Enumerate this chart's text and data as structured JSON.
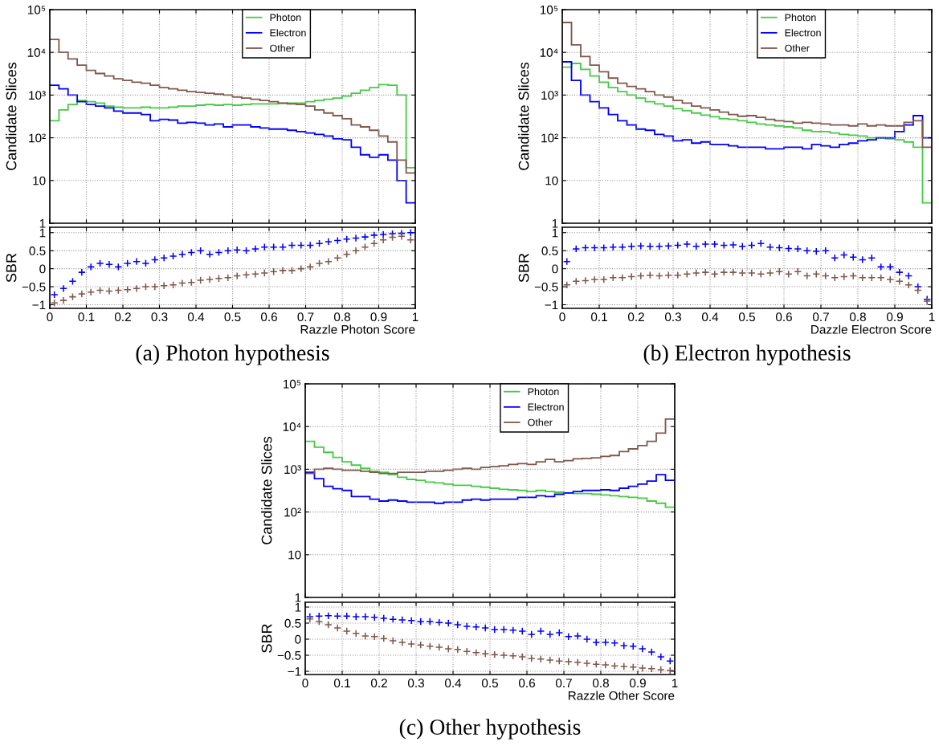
{
  "chart_data": [
    {
      "type": "histogram",
      "ylabel": "Candidate Slices",
      "log": "y",
      "grid": true,
      "legend": "top",
      "tick_labels": "y",
      "xlim": [
        0,
        1
      ],
      "ylim": [
        1,
        100000
      ],
      "yticks": [
        1,
        10,
        {
          "value": 100,
          "label": "10²"
        },
        {
          "value": 1000,
          "label": "10³"
        },
        {
          "value": 10000,
          "label": "10⁴"
        },
        {
          "value": 100000,
          "label": "10⁵"
        }
      ],
      "bins": [
        0,
        0.025,
        0.05,
        0.075,
        0.1,
        0.125,
        0.15,
        0.175,
        0.2,
        0.225,
        0.25,
        0.275,
        0.3,
        0.325,
        0.35,
        0.375,
        0.4,
        0.425,
        0.45,
        0.475,
        0.5,
        0.525,
        0.55,
        0.575,
        0.6,
        0.625,
        0.65,
        0.675,
        0.7,
        0.725,
        0.75,
        0.775,
        0.8,
        0.825,
        0.85,
        0.875,
        0.9,
        0.925,
        0.95,
        0.975,
        1
      ],
      "series": [
        {
          "name": "Photon",
          "color": "#44cc44",
          "values": [
            250,
            450,
            600,
            750,
            700,
            650,
            550,
            520,
            500,
            500,
            520,
            500,
            500,
            520,
            550,
            550,
            580,
            600,
            580,
            600,
            580,
            600,
            620,
            620,
            620,
            640,
            650,
            650,
            700,
            750,
            800,
            850,
            950,
            1100,
            1300,
            1500,
            1750,
            1700,
            1000,
            20
          ]
        },
        {
          "name": "Electron",
          "color": "#0000ff",
          "values": [
            1700,
            1400,
            1000,
            700,
            600,
            550,
            500,
            420,
            380,
            380,
            350,
            250,
            270,
            260,
            220,
            230,
            220,
            200,
            210,
            180,
            200,
            200,
            180,
            170,
            160,
            160,
            150,
            140,
            130,
            120,
            110,
            95,
            90,
            60,
            40,
            35,
            40,
            30,
            10,
            3
          ]
        },
        {
          "name": "Other",
          "color": "#80574b",
          "values": [
            20000,
            10000,
            7000,
            5000,
            3800,
            3200,
            2800,
            2400,
            2200,
            2000,
            1900,
            1700,
            1500,
            1400,
            1300,
            1200,
            1150,
            1100,
            1050,
            1000,
            900,
            850,
            800,
            750,
            700,
            650,
            620,
            600,
            550,
            450,
            380,
            330,
            280,
            200,
            180,
            150,
            110,
            80,
            30,
            15
          ]
        }
      ]
    },
    {
      "type": "scatter",
      "ylabel": "SBR",
      "xlabel": "Razzle Photon Score",
      "marker": "cross",
      "grid": true,
      "xlim": [
        0,
        1
      ],
      "ylim": [
        -1.1,
        1.15
      ],
      "xticks": [
        0,
        0.1,
        0.2,
        0.3,
        0.4,
        0.5,
        0.6,
        0.7,
        0.8,
        0.9,
        1
      ],
      "yticks": [
        {
          "value": -1,
          "label": "−1"
        },
        {
          "value": -0.5,
          "label": "−0.5"
        },
        0,
        0.5,
        1
      ],
      "annotations": [
        "(a) Photon hypothesis"
      ],
      "x": [
        0.0125,
        0.0375,
        0.0625,
        0.0875,
        0.1125,
        0.1375,
        0.1625,
        0.1875,
        0.2125,
        0.2375,
        0.2625,
        0.2875,
        0.3125,
        0.3375,
        0.3625,
        0.3875,
        0.4125,
        0.4375,
        0.4625,
        0.4875,
        0.5125,
        0.5375,
        0.5625,
        0.5875,
        0.6125,
        0.6375,
        0.6625,
        0.6875,
        0.7125,
        0.7375,
        0.7625,
        0.7875,
        0.8125,
        0.8375,
        0.8625,
        0.8875,
        0.9125,
        0.9375,
        0.9625,
        0.9875
      ],
      "series": [
        {
          "color": "#0000ff",
          "values": [
            -0.72,
            -0.55,
            -0.35,
            -0.1,
            0.05,
            0.15,
            0.12,
            0.05,
            0.15,
            0.2,
            0.15,
            0.25,
            0.3,
            0.35,
            0.4,
            0.45,
            0.5,
            0.4,
            0.45,
            0.5,
            0.52,
            0.5,
            0.55,
            0.6,
            0.6,
            0.6,
            0.65,
            0.65,
            0.65,
            0.7,
            0.75,
            0.78,
            0.82,
            0.85,
            0.88,
            0.93,
            0.95,
            0.97,
            0.98,
            1.0
          ]
        },
        {
          "color": "#80574b",
          "values": [
            -0.95,
            -0.88,
            -0.78,
            -0.7,
            -0.65,
            -0.6,
            -0.62,
            -0.6,
            -0.58,
            -0.55,
            -0.5,
            -0.5,
            -0.47,
            -0.45,
            -0.4,
            -0.38,
            -0.32,
            -0.3,
            -0.27,
            -0.25,
            -0.2,
            -0.17,
            -0.15,
            -0.12,
            -0.08,
            -0.05,
            -0.05,
            0.0,
            0.05,
            0.15,
            0.2,
            0.3,
            0.4,
            0.5,
            0.6,
            0.7,
            0.8,
            0.87,
            0.9,
            0.8
          ]
        }
      ]
    },
    {
      "type": "histogram",
      "ylabel": "Candidate Slices",
      "log": "y",
      "grid": true,
      "legend": "top",
      "tick_labels": "y",
      "xlim": [
        0,
        1
      ],
      "ylim": [
        1,
        100000
      ],
      "yticks": [
        1,
        10,
        {
          "value": 100,
          "label": "10²"
        },
        {
          "value": 1000,
          "label": "10³"
        },
        {
          "value": 10000,
          "label": "10⁴"
        },
        {
          "value": 100000,
          "label": "10⁵"
        }
      ],
      "bins": [
        0,
        0.025,
        0.05,
        0.075,
        0.1,
        0.125,
        0.15,
        0.175,
        0.2,
        0.225,
        0.25,
        0.275,
        0.3,
        0.325,
        0.35,
        0.375,
        0.4,
        0.425,
        0.45,
        0.475,
        0.5,
        0.525,
        0.55,
        0.575,
        0.6,
        0.625,
        0.65,
        0.675,
        0.7,
        0.725,
        0.75,
        0.775,
        0.8,
        0.825,
        0.85,
        0.875,
        0.9,
        0.925,
        0.95,
        0.975,
        1
      ],
      "series": [
        {
          "name": "Photon",
          "color": "#44cc44",
          "values": [
            4500,
            5500,
            4000,
            2800,
            2000,
            1500,
            1200,
            1000,
            850,
            700,
            620,
            550,
            480,
            430,
            380,
            340,
            310,
            280,
            270,
            250,
            230,
            210,
            200,
            190,
            180,
            170,
            150,
            140,
            140,
            130,
            120,
            115,
            110,
            100,
            100,
            95,
            90,
            80,
            60,
            3
          ]
        },
        {
          "name": "Electron",
          "color": "#0000ff",
          "values": [
            6000,
            2200,
            1000,
            700,
            500,
            350,
            250,
            200,
            160,
            150,
            120,
            110,
            85,
            90,
            75,
            80,
            70,
            70,
            65,
            60,
            60,
            60,
            55,
            55,
            60,
            60,
            55,
            70,
            65,
            60,
            70,
            75,
            85,
            90,
            100,
            100,
            140,
            200,
            330,
            100
          ]
        },
        {
          "name": "Other",
          "color": "#80574b",
          "values": [
            50000,
            15000,
            8000,
            5000,
            3500,
            2500,
            1900,
            1600,
            1400,
            1200,
            1000,
            900,
            750,
            650,
            550,
            500,
            450,
            400,
            350,
            320,
            330,
            300,
            270,
            250,
            240,
            220,
            230,
            220,
            210,
            200,
            200,
            190,
            210,
            190,
            200,
            190,
            190,
            230,
            250,
            60
          ]
        }
      ]
    },
    {
      "type": "scatter",
      "ylabel": "SBR",
      "xlabel": "Dazzle Electron Score",
      "marker": "cross",
      "grid": true,
      "xlim": [
        0,
        1
      ],
      "ylim": [
        -1.1,
        1.15
      ],
      "xticks": [
        0,
        0.1,
        0.2,
        0.3,
        0.4,
        0.5,
        0.6,
        0.7,
        0.8,
        0.9,
        1
      ],
      "yticks": [
        {
          "value": -1,
          "label": "−1"
        },
        {
          "value": -0.5,
          "label": "−0.5"
        },
        0,
        0.5,
        1
      ],
      "annotations": [
        "(b) Electron hypothesis"
      ],
      "x": [
        0.0125,
        0.0375,
        0.0625,
        0.0875,
        0.1125,
        0.1375,
        0.1625,
        0.1875,
        0.2125,
        0.2375,
        0.2625,
        0.2875,
        0.3125,
        0.3375,
        0.3625,
        0.3875,
        0.4125,
        0.4375,
        0.4625,
        0.4875,
        0.5125,
        0.5375,
        0.5625,
        0.5875,
        0.6125,
        0.6375,
        0.6625,
        0.6875,
        0.7125,
        0.7375,
        0.7625,
        0.7875,
        0.8125,
        0.8375,
        0.8625,
        0.8875,
        0.9125,
        0.9375,
        0.9625,
        0.9875
      ],
      "series": [
        {
          "color": "#0000ff",
          "values": [
            0.2,
            0.55,
            0.58,
            0.58,
            0.58,
            0.6,
            0.6,
            0.62,
            0.63,
            0.62,
            0.62,
            0.63,
            0.65,
            0.68,
            0.62,
            0.68,
            0.68,
            0.65,
            0.66,
            0.62,
            0.65,
            0.7,
            0.6,
            0.58,
            0.56,
            0.55,
            0.5,
            0.48,
            0.5,
            0.3,
            0.38,
            0.32,
            0.25,
            0.3,
            0.05,
            0.05,
            -0.1,
            -0.2,
            -0.5,
            -0.85
          ]
        },
        {
          "color": "#80574b",
          "values": [
            -0.45,
            -0.35,
            -0.33,
            -0.3,
            -0.3,
            -0.25,
            -0.25,
            -0.22,
            -0.2,
            -0.18,
            -0.2,
            -0.18,
            -0.18,
            -0.15,
            -0.12,
            -0.1,
            -0.15,
            -0.1,
            -0.1,
            -0.12,
            -0.12,
            -0.15,
            -0.12,
            -0.08,
            -0.15,
            -0.08,
            -0.2,
            -0.15,
            -0.2,
            -0.25,
            -0.22,
            -0.2,
            -0.25,
            -0.25,
            -0.25,
            -0.3,
            -0.35,
            -0.45,
            -0.6,
            -0.9
          ]
        }
      ]
    },
    {
      "type": "histogram",
      "ylabel": "Candidate Slices",
      "log": "y",
      "grid": true,
      "legend": "top",
      "tick_labels": "y",
      "xlim": [
        0,
        1
      ],
      "ylim": [
        1,
        100000
      ],
      "yticks": [
        1,
        10,
        {
          "value": 100,
          "label": "10²"
        },
        {
          "value": 1000,
          "label": "10³"
        },
        {
          "value": 10000,
          "label": "10⁴"
        },
        {
          "value": 100000,
          "label": "10⁵"
        }
      ],
      "bins": [
        0,
        0.025,
        0.05,
        0.075,
        0.1,
        0.125,
        0.15,
        0.175,
        0.2,
        0.225,
        0.25,
        0.275,
        0.3,
        0.325,
        0.35,
        0.375,
        0.4,
        0.425,
        0.45,
        0.475,
        0.5,
        0.525,
        0.55,
        0.575,
        0.6,
        0.625,
        0.65,
        0.675,
        0.7,
        0.725,
        0.75,
        0.775,
        0.8,
        0.825,
        0.85,
        0.875,
        0.9,
        0.925,
        0.95,
        0.975,
        1
      ],
      "series": [
        {
          "name": "Photon",
          "color": "#44cc44",
          "values": [
            4500,
            3300,
            2500,
            1900,
            1500,
            1250,
            1050,
            900,
            850,
            750,
            650,
            580,
            550,
            500,
            480,
            450,
            420,
            420,
            400,
            380,
            360,
            340,
            330,
            320,
            300,
            320,
            300,
            290,
            280,
            270,
            270,
            260,
            250,
            240,
            230,
            220,
            210,
            180,
            160,
            130
          ]
        },
        {
          "name": "Electron",
          "color": "#0000ff",
          "values": [
            850,
            600,
            400,
            350,
            320,
            230,
            230,
            200,
            180,
            190,
            180,
            170,
            170,
            170,
            160,
            170,
            170,
            190,
            200,
            190,
            200,
            200,
            200,
            220,
            220,
            240,
            230,
            260,
            280,
            300,
            320,
            320,
            330,
            320,
            360,
            400,
            450,
            530,
            750,
            550
          ]
        },
        {
          "name": "Other",
          "color": "#80574b",
          "values": [
            800,
            1000,
            1050,
            1000,
            950,
            950,
            900,
            850,
            800,
            800,
            850,
            850,
            850,
            900,
            900,
            950,
            1000,
            1050,
            1000,
            1100,
            1150,
            1200,
            1300,
            1350,
            1300,
            1500,
            1700,
            1500,
            1600,
            1750,
            1800,
            1850,
            2000,
            2100,
            2600,
            3000,
            3600,
            4500,
            7000,
            15000
          ]
        }
      ]
    },
    {
      "type": "scatter",
      "ylabel": "SBR",
      "xlabel": "Razzle Other Score",
      "marker": "cross",
      "grid": true,
      "xlim": [
        0,
        1
      ],
      "ylim": [
        -1.1,
        1.15
      ],
      "xticks": [
        0,
        0.1,
        0.2,
        0.3,
        0.4,
        0.5,
        0.6,
        0.7,
        0.8,
        0.9,
        1
      ],
      "yticks": [
        {
          "value": -1,
          "label": "−1"
        },
        {
          "value": -0.5,
          "label": "−0.5"
        },
        0,
        0.5,
        1
      ],
      "annotations": [
        "(c) Other hypothesis"
      ],
      "x": [
        0.0125,
        0.0375,
        0.0625,
        0.0875,
        0.1125,
        0.1375,
        0.1625,
        0.1875,
        0.2125,
        0.2375,
        0.2625,
        0.2875,
        0.3125,
        0.3375,
        0.3625,
        0.3875,
        0.4125,
        0.4375,
        0.4625,
        0.4875,
        0.5125,
        0.5375,
        0.5625,
        0.5875,
        0.6125,
        0.6375,
        0.6625,
        0.6875,
        0.7125,
        0.7375,
        0.7625,
        0.7875,
        0.8125,
        0.8375,
        0.8625,
        0.8875,
        0.9125,
        0.9375,
        0.9625,
        0.9875
      ],
      "series": [
        {
          "color": "#0000ff",
          "values": [
            0.7,
            0.72,
            0.73,
            0.72,
            0.72,
            0.7,
            0.7,
            0.68,
            0.65,
            0.62,
            0.6,
            0.58,
            0.55,
            0.55,
            0.52,
            0.5,
            0.45,
            0.4,
            0.38,
            0.35,
            0.3,
            0.3,
            0.28,
            0.25,
            0.15,
            0.25,
            0.15,
            0.2,
            0.08,
            0.1,
            0.0,
            -0.1,
            -0.1,
            -0.12,
            -0.2,
            -0.22,
            -0.3,
            -0.4,
            -0.55,
            -0.68
          ]
        },
        {
          "color": "#80574b",
          "values": [
            0.63,
            0.55,
            0.45,
            0.35,
            0.25,
            0.18,
            0.1,
            0.08,
            0.02,
            -0.05,
            -0.1,
            -0.15,
            -0.18,
            -0.22,
            -0.25,
            -0.3,
            -0.32,
            -0.38,
            -0.42,
            -0.45,
            -0.48,
            -0.5,
            -0.52,
            -0.55,
            -0.6,
            -0.62,
            -0.65,
            -0.68,
            -0.7,
            -0.72,
            -0.75,
            -0.78,
            -0.8,
            -0.83,
            -0.85,
            -0.87,
            -0.9,
            -0.92,
            -0.95,
            -0.97
          ]
        }
      ]
    }
  ]
}
